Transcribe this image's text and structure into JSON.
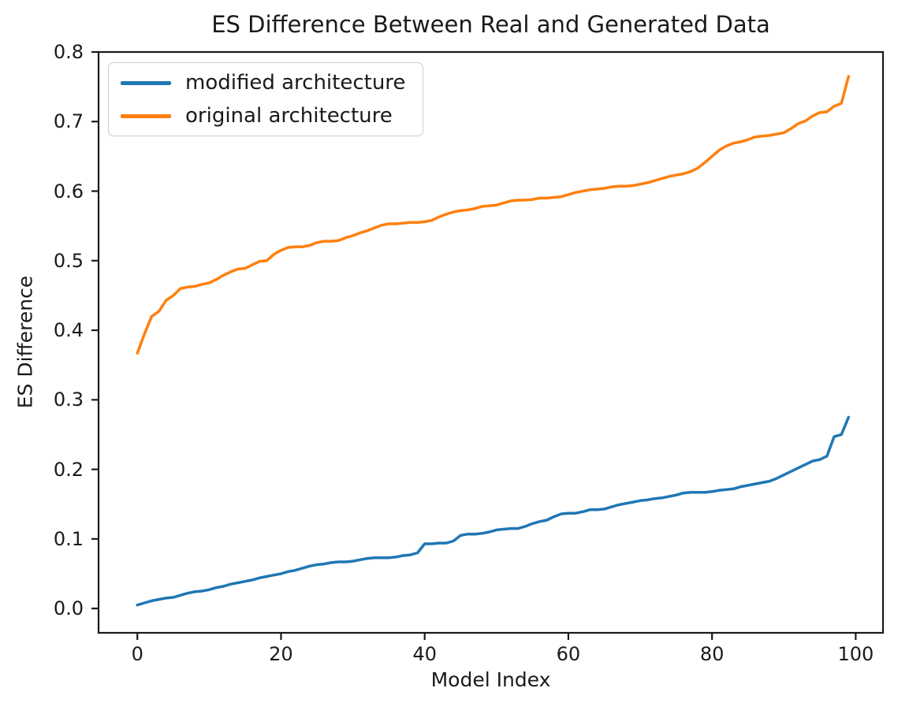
{
  "chart_data": {
    "type": "line",
    "title": "ES Difference Between Real and Generated Data",
    "xlabel": "Model Index",
    "ylabel": "ES Difference",
    "xlim": [
      -5.4,
      103.8
    ],
    "ylim": [
      -0.035,
      0.8
    ],
    "grid": false,
    "legend_position": "upper left",
    "x_ticks": {
      "values": [
        0,
        20,
        40,
        60,
        80,
        100
      ],
      "labels": [
        "0",
        "20",
        "40",
        "60",
        "80",
        "100"
      ]
    },
    "y_ticks": {
      "values": [
        0.0,
        0.1,
        0.2,
        0.3,
        0.4,
        0.5,
        0.6,
        0.7,
        0.8
      ],
      "labels": [
        "0.0",
        "0.1",
        "0.2",
        "0.3",
        "0.4",
        "0.5",
        "0.6",
        "0.7",
        "0.8"
      ]
    },
    "x_description": "model index 0..99 (implicit point index)",
    "series": [
      {
        "name": "modified architecture",
        "color": "#1f77b4",
        "values": [
          0.005,
          0.008,
          0.011,
          0.013,
          0.015,
          0.016,
          0.019,
          0.022,
          0.024,
          0.025,
          0.027,
          0.03,
          0.032,
          0.035,
          0.037,
          0.039,
          0.041,
          0.044,
          0.046,
          0.048,
          0.05,
          0.053,
          0.055,
          0.058,
          0.061,
          0.063,
          0.064,
          0.066,
          0.067,
          0.067,
          0.068,
          0.07,
          0.072,
          0.073,
          0.073,
          0.073,
          0.074,
          0.076,
          0.077,
          0.08,
          0.093,
          0.093,
          0.094,
          0.094,
          0.097,
          0.105,
          0.107,
          0.107,
          0.108,
          0.11,
          0.113,
          0.114,
          0.115,
          0.115,
          0.118,
          0.122,
          0.125,
          0.127,
          0.132,
          0.136,
          0.137,
          0.137,
          0.139,
          0.142,
          0.142,
          0.143,
          0.146,
          0.149,
          0.151,
          0.153,
          0.155,
          0.156,
          0.158,
          0.159,
          0.161,
          0.163,
          0.166,
          0.167,
          0.167,
          0.167,
          0.168,
          0.17,
          0.171,
          0.172,
          0.175,
          0.177,
          0.179,
          0.181,
          0.183,
          0.187,
          0.192,
          0.197,
          0.202,
          0.207,
          0.212,
          0.214,
          0.219,
          0.247,
          0.25,
          0.275
        ]
      },
      {
        "name": "original architecture",
        "color": "#ff7f0e",
        "values": [
          0.367,
          0.395,
          0.42,
          0.427,
          0.443,
          0.45,
          0.46,
          0.462,
          0.463,
          0.466,
          0.468,
          0.473,
          0.479,
          0.484,
          0.488,
          0.489,
          0.494,
          0.499,
          0.5,
          0.509,
          0.515,
          0.519,
          0.52,
          0.52,
          0.522,
          0.526,
          0.528,
          0.528,
          0.529,
          0.533,
          0.536,
          0.54,
          0.543,
          0.547,
          0.551,
          0.553,
          0.553,
          0.554,
          0.555,
          0.555,
          0.556,
          0.558,
          0.563,
          0.567,
          0.57,
          0.572,
          0.573,
          0.575,
          0.578,
          0.579,
          0.58,
          0.583,
          0.586,
          0.587,
          0.587,
          0.588,
          0.59,
          0.59,
          0.591,
          0.592,
          0.595,
          0.598,
          0.6,
          0.602,
          0.603,
          0.604,
          0.606,
          0.607,
          0.607,
          0.608,
          0.61,
          0.612,
          0.615,
          0.618,
          0.621,
          0.623,
          0.625,
          0.628,
          0.633,
          0.641,
          0.65,
          0.659,
          0.665,
          0.669,
          0.671,
          0.674,
          0.678,
          0.679,
          0.68,
          0.682,
          0.684,
          0.69,
          0.697,
          0.701,
          0.708,
          0.713,
          0.714,
          0.722,
          0.726,
          0.765
        ]
      }
    ],
    "style": {
      "spine_color": "#1a1a1a",
      "tick_color": "#1a1a1a",
      "line_width": 3.5
    }
  }
}
